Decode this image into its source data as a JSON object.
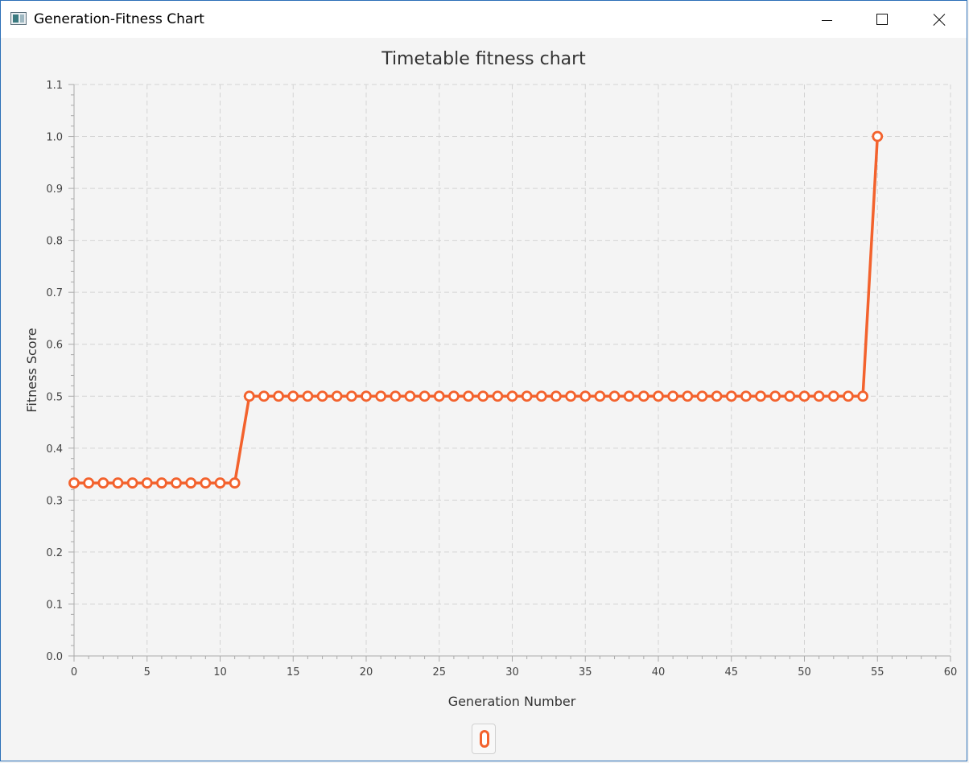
{
  "window": {
    "title": "Generation-Fitness Chart",
    "icon": "app-window-icon",
    "controls": [
      "minimize-icon",
      "maximize-icon",
      "close-icon"
    ]
  },
  "colors": {
    "series": "#f3622d",
    "grid": "#d3d3d3",
    "background": "#f4f4f4"
  },
  "chart_data": {
    "type": "line",
    "title": "Timetable fitness chart",
    "xlabel": "Generation Number",
    "ylabel": "Fitness Score",
    "xlim": [
      0,
      60
    ],
    "ylim": [
      0.0,
      1.1
    ],
    "x_ticks": [
      0,
      5,
      10,
      15,
      20,
      25,
      30,
      35,
      40,
      45,
      50,
      55,
      60
    ],
    "x_tick_labels": [
      "0",
      "5",
      "10",
      "15",
      "20",
      "25",
      "30",
      "35",
      "40",
      "45",
      "50",
      "55",
      "60"
    ],
    "y_ticks": [
      0.0,
      0.1,
      0.2,
      0.3,
      0.4,
      0.5,
      0.6,
      0.7,
      0.8,
      0.9,
      1.0,
      1.1
    ],
    "y_tick_labels": [
      "0.0",
      "0.1",
      "0.2",
      "0.3",
      "0.4",
      "0.5",
      "0.6",
      "0.7",
      "0.8",
      "0.9",
      "1.0",
      "1.1"
    ],
    "grid": true,
    "legend": "bottom-center",
    "series": [
      {
        "x": [
          0,
          1,
          2,
          3,
          4,
          5,
          6,
          7,
          8,
          9,
          10,
          11,
          12,
          13,
          14,
          15,
          16,
          17,
          18,
          19,
          20,
          21,
          22,
          23,
          24,
          25,
          26,
          27,
          28,
          29,
          30,
          31,
          32,
          33,
          34,
          35,
          36,
          37,
          38,
          39,
          40,
          41,
          42,
          43,
          44,
          45,
          46,
          47,
          48,
          49,
          50,
          51,
          52,
          53,
          54,
          55
        ],
        "y": [
          0.333,
          0.333,
          0.333,
          0.333,
          0.333,
          0.333,
          0.333,
          0.333,
          0.333,
          0.333,
          0.333,
          0.333,
          0.5,
          0.5,
          0.5,
          0.5,
          0.5,
          0.5,
          0.5,
          0.5,
          0.5,
          0.5,
          0.5,
          0.5,
          0.5,
          0.5,
          0.5,
          0.5,
          0.5,
          0.5,
          0.5,
          0.5,
          0.5,
          0.5,
          0.5,
          0.5,
          0.5,
          0.5,
          0.5,
          0.5,
          0.5,
          0.5,
          0.5,
          0.5,
          0.5,
          0.5,
          0.5,
          0.5,
          0.5,
          0.5,
          0.5,
          0.5,
          0.5,
          0.5,
          0.5,
          1.0
        ]
      }
    ]
  }
}
